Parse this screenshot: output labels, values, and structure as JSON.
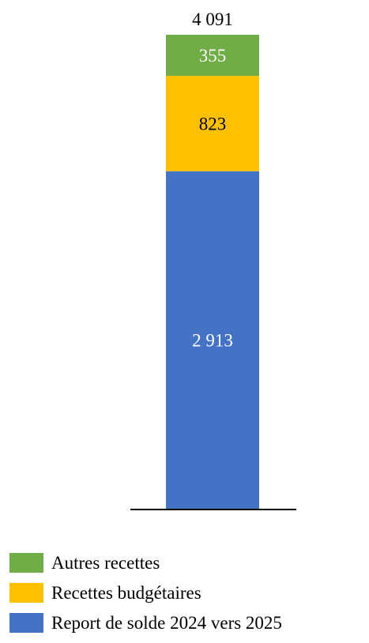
{
  "chart_data": {
    "type": "bar",
    "stacked": true,
    "categories": [
      ""
    ],
    "total_label": "4 091",
    "series": [
      {
        "name": "Report de solde 2024 vers 2025",
        "values": [
          2913
        ],
        "label": "2 913",
        "color": "#4472C4",
        "label_color": "#ffffff"
      },
      {
        "name": "Recettes budgétaires",
        "values": [
          823
        ],
        "label": "823",
        "color": "#FFC000",
        "label_color": "#000000"
      },
      {
        "name": "Autres recettes",
        "values": [
          355
        ],
        "label": "355",
        "color": "#70AD47",
        "label_color": "#ffffff"
      }
    ],
    "ylim": [
      0,
      4091
    ],
    "grid": false,
    "legend_position": "bottom-left"
  },
  "legend": {
    "items": [
      {
        "label": "Autres recettes",
        "color": "#70AD47"
      },
      {
        "label": "Recettes budgétaires",
        "color": "#FFC000"
      },
      {
        "label": "Report de solde 2024 vers 2025",
        "color": "#4472C4"
      }
    ]
  }
}
